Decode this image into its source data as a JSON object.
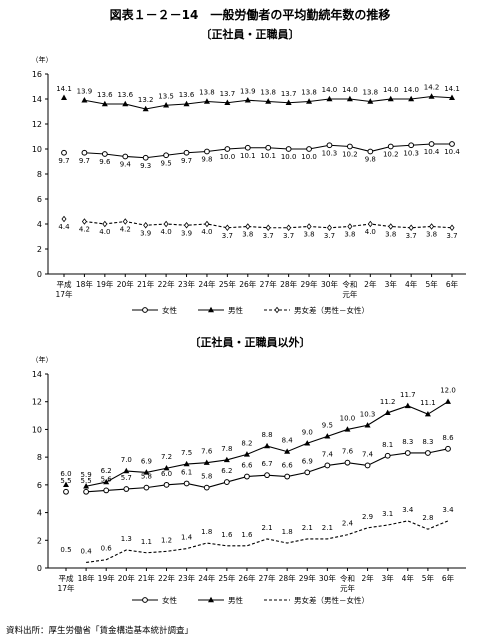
{
  "page": {
    "title": "図表１－２－14　一般労働者の平均勤続年数の推移",
    "source": "資料出所：厚生労働省「賃金構造基本統計調査」"
  },
  "chart_data": [
    {
      "type": "line",
      "subtitle": "〔正社員・正職員〕",
      "ylabel": "（年）",
      "ylim": [
        0,
        16
      ],
      "yticks": [
        0,
        2,
        4,
        6,
        8,
        10,
        12,
        14,
        16
      ],
      "grid": false,
      "legend_position": "bottom",
      "categories": [
        {
          "l1": "平成",
          "l2": "17年"
        },
        {
          "l1": "18年"
        },
        {
          "l1": "19年"
        },
        {
          "l1": "20年"
        },
        {
          "l1": "21年"
        },
        {
          "l1": "22年"
        },
        {
          "l1": "23年"
        },
        {
          "l1": "24年"
        },
        {
          "l1": "25年"
        },
        {
          "l1": "26年"
        },
        {
          "l1": "27年"
        },
        {
          "l1": "28年"
        },
        {
          "l1": "29年"
        },
        {
          "l1": "30年"
        },
        {
          "l1": "令和",
          "l2": "元年"
        },
        {
          "l1": "2年"
        },
        {
          "l1": "3年"
        },
        {
          "l1": "4年"
        },
        {
          "l1": "5年"
        },
        {
          "l1": "6年"
        }
      ],
      "series": [
        {
          "name": "女性",
          "marker": "circle",
          "dashed": false,
          "values": [
            9.7,
            9.7,
            9.6,
            9.4,
            9.3,
            9.5,
            9.7,
            9.8,
            10.0,
            10.1,
            10.1,
            10.0,
            10.0,
            10.3,
            10.2,
            9.8,
            10.2,
            10.3,
            10.4,
            10.4
          ]
        },
        {
          "name": "男性",
          "marker": "triangle",
          "dashed": false,
          "values": [
            14.1,
            13.9,
            13.6,
            13.6,
            13.2,
            13.5,
            13.6,
            13.8,
            13.7,
            13.9,
            13.8,
            13.7,
            13.8,
            14.0,
            14.0,
            13.8,
            14.0,
            14.0,
            14.2,
            14.1
          ]
        },
        {
          "name": "男女差（男性－女性）",
          "marker": "diamond",
          "dashed": true,
          "values": [
            4.4,
            4.2,
            4.0,
            4.2,
            3.9,
            4.0,
            3.9,
            4.0,
            3.7,
            3.8,
            3.7,
            3.7,
            3.8,
            3.7,
            3.8,
            4.0,
            3.8,
            3.7,
            3.8,
            3.7
          ]
        }
      ]
    },
    {
      "type": "line",
      "subtitle": "〔正社員・正職員以外〕",
      "ylabel": "（年）",
      "ylim": [
        0,
        14
      ],
      "yticks": [
        0,
        2,
        4,
        6,
        8,
        10,
        12,
        14
      ],
      "grid": false,
      "legend_position": "bottom",
      "categories": [
        {
          "l1": "平成",
          "l2": "17年"
        },
        {
          "l1": "18年"
        },
        {
          "l1": "19年"
        },
        {
          "l1": "20年"
        },
        {
          "l1": "21年"
        },
        {
          "l1": "22年"
        },
        {
          "l1": "23年"
        },
        {
          "l1": "24年"
        },
        {
          "l1": "25年"
        },
        {
          "l1": "26年"
        },
        {
          "l1": "27年"
        },
        {
          "l1": "28年"
        },
        {
          "l1": "29年"
        },
        {
          "l1": "30年"
        },
        {
          "l1": "令和",
          "l2": "元年"
        },
        {
          "l1": "2年"
        },
        {
          "l1": "3年"
        },
        {
          "l1": "4年"
        },
        {
          "l1": "5年"
        },
        {
          "l1": "6年"
        }
      ],
      "series": [
        {
          "name": "女性",
          "marker": "circle",
          "dashed": false,
          "values": [
            5.5,
            5.5,
            5.6,
            5.7,
            5.8,
            6.0,
            6.1,
            5.8,
            6.2,
            6.6,
            6.7,
            6.6,
            6.9,
            7.4,
            7.6,
            7.4,
            8.1,
            8.3,
            8.3,
            8.6
          ]
        },
        {
          "name": "男性",
          "marker": "triangle",
          "dashed": false,
          "values": [
            6.0,
            5.9,
            6.2,
            7.0,
            6.9,
            7.2,
            7.5,
            7.6,
            7.8,
            8.2,
            8.8,
            8.4,
            9.0,
            9.5,
            10.0,
            10.3,
            11.2,
            11.7,
            11.1,
            12.0
          ]
        },
        {
          "name": "男女差（男性－女性）",
          "marker": "none",
          "dashed": true,
          "values": [
            0.5,
            0.4,
            0.6,
            1.3,
            1.1,
            1.2,
            1.4,
            1.8,
            1.6,
            1.6,
            2.1,
            1.8,
            2.1,
            2.1,
            2.4,
            2.9,
            3.1,
            3.4,
            2.8,
            3.4
          ]
        }
      ]
    }
  ]
}
